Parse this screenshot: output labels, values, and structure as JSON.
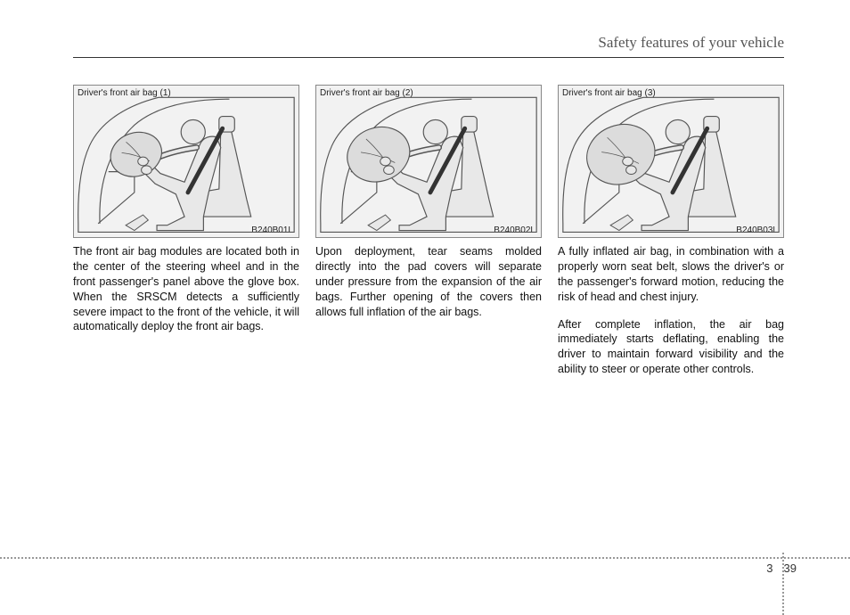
{
  "header": {
    "title": "Safety features of your vehicle"
  },
  "columns": [
    {
      "figure": {
        "label": "Driver's front air bag (1)",
        "code": "B240B01L",
        "airbag_scale": 0.55
      },
      "paragraphs": [
        "The front air bag modules are located both in the center of the steering wheel and in the front passenger's panel above the glove box. When the SRSCM detects a sufficiently severe impact to the front of the vehicle, it will automatically deploy the front air bags."
      ]
    },
    {
      "figure": {
        "label": "Driver's front air bag (2)",
        "code": "B240B02L",
        "airbag_scale": 0.85
      },
      "paragraphs": [
        "Upon deployment, tear seams molded directly into the pad covers will separate under pressure from the expansion of the air bags. Further opening of the covers then allows full inflation of the air bags."
      ]
    },
    {
      "figure": {
        "label": "Driver's front air bag (3)",
        "code": "B240B03L",
        "airbag_scale": 1.0
      },
      "paragraphs": [
        "A fully inflated air bag, in combination with a properly worn seat belt, slows the driver's or the passenger's forward motion, reducing the risk of head and chest injury.",
        "After complete inflation, the air bag immediately starts deflating, enabling the driver to maintain forward visibility and the ability to steer or operate other controls."
      ]
    }
  ],
  "footer": {
    "section": "3",
    "page": "39"
  },
  "style": {
    "bg": "#ffffff",
    "figure_bg": "#f2f2f2",
    "line_color": "#555555",
    "body_fill": "#e8e8e8",
    "belt_color": "#333333",
    "airbag_fill": "#dcdcdc"
  }
}
